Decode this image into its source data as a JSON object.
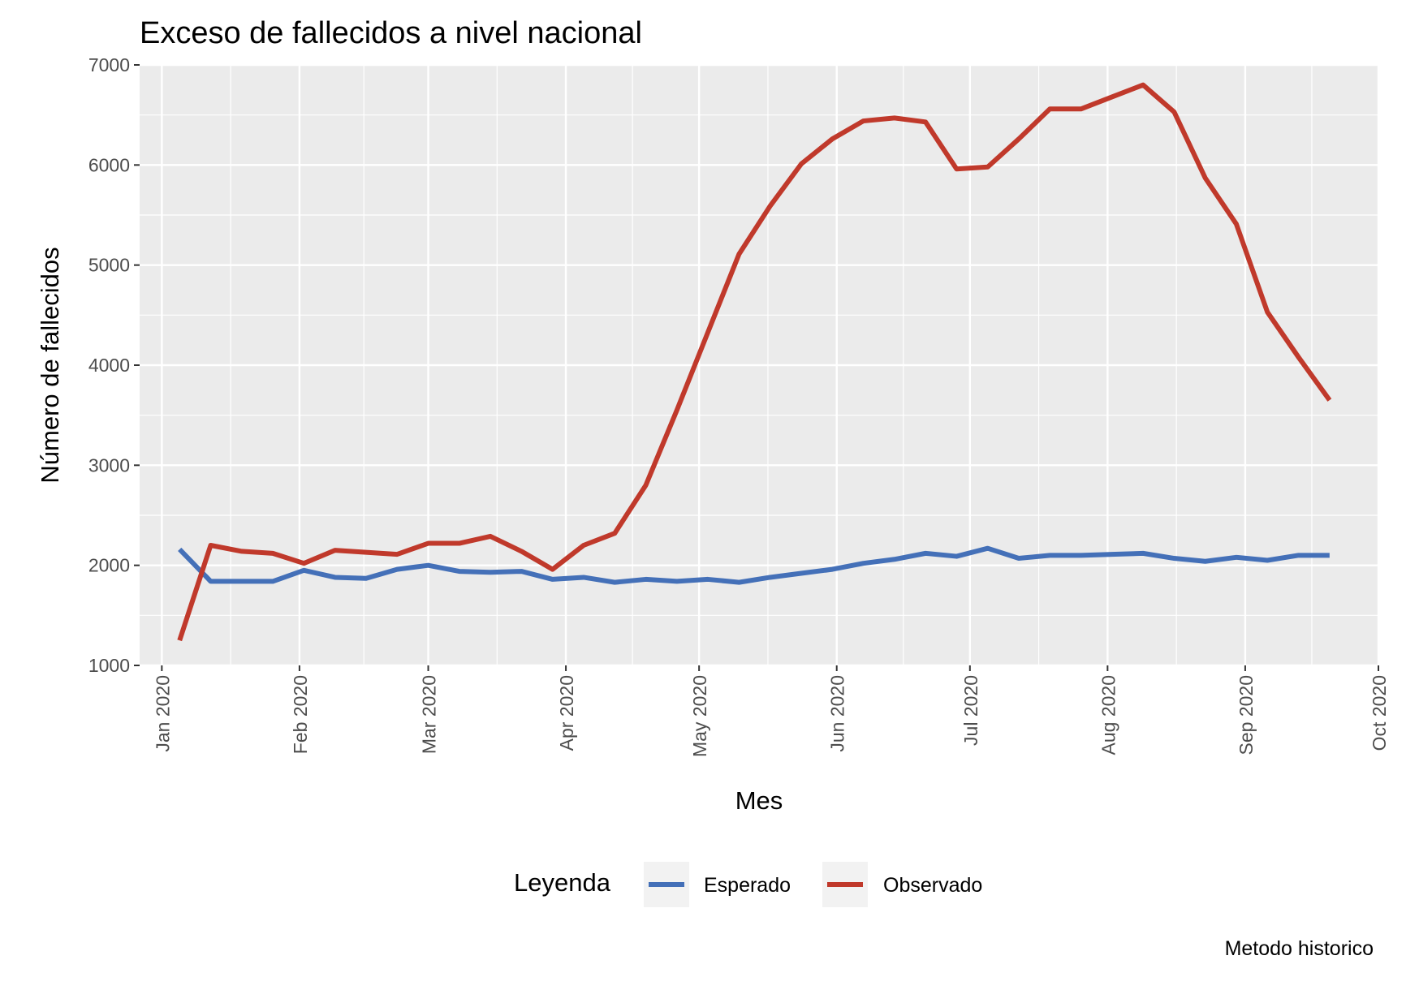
{
  "chart_data": {
    "type": "line",
    "title": "Exceso de fallecidos a nivel nacional",
    "xlabel": "Mes",
    "ylabel": "Número de fallecidos",
    "caption": "Metodo historico",
    "ylim": [
      1000,
      7000
    ],
    "y_ticks": [
      1000,
      2000,
      3000,
      4000,
      5000,
      6000,
      7000
    ],
    "xlim": [
      "2019-12-27",
      "2020-10-01"
    ],
    "x_ticks": [
      {
        "date": "2020-01-01",
        "label": "Jan 2020"
      },
      {
        "date": "2020-02-01",
        "label": "Feb 2020"
      },
      {
        "date": "2020-03-01",
        "label": "Mar 2020"
      },
      {
        "date": "2020-04-01",
        "label": "Apr 2020"
      },
      {
        "date": "2020-05-01",
        "label": "May 2020"
      },
      {
        "date": "2020-06-01",
        "label": "Jun 2020"
      },
      {
        "date": "2020-07-01",
        "label": "Jul 2020"
      },
      {
        "date": "2020-08-01",
        "label": "Aug 2020"
      },
      {
        "date": "2020-09-01",
        "label": "Sep 2020"
      },
      {
        "date": "2020-10-01",
        "label": "Oct 2020"
      }
    ],
    "x": [
      "2020-01-05",
      "2020-01-12",
      "2020-01-19",
      "2020-01-26",
      "2020-02-02",
      "2020-02-09",
      "2020-02-16",
      "2020-02-23",
      "2020-03-01",
      "2020-03-08",
      "2020-03-15",
      "2020-03-22",
      "2020-03-29",
      "2020-04-05",
      "2020-04-12",
      "2020-04-19",
      "2020-04-26",
      "2020-05-03",
      "2020-05-10",
      "2020-05-17",
      "2020-05-24",
      "2020-05-31",
      "2020-06-07",
      "2020-06-14",
      "2020-06-21",
      "2020-06-28",
      "2020-07-05",
      "2020-07-12",
      "2020-07-19",
      "2020-07-26",
      "2020-08-02",
      "2020-08-09",
      "2020-08-16",
      "2020-08-23",
      "2020-08-30",
      "2020-09-06",
      "2020-09-13",
      "2020-09-20"
    ],
    "series": [
      {
        "name": "Esperado",
        "color": "#4470b8",
        "values": [
          2160,
          1840,
          1840,
          1840,
          1950,
          1880,
          1870,
          1960,
          2000,
          1940,
          1930,
          1940,
          1860,
          1880,
          1830,
          1860,
          1840,
          1860,
          1830,
          1880,
          1920,
          1960,
          2020,
          2060,
          2120,
          2090,
          2170,
          2070,
          2100,
          2100,
          2110,
          2120,
          2070,
          2040,
          2080,
          2050,
          2100,
          2100
        ]
      },
      {
        "name": "Observado",
        "color": "#c0392b",
        "values": [
          1250,
          2200,
          2140,
          2120,
          2020,
          2150,
          2130,
          2110,
          2220,
          2220,
          2290,
          2140,
          1960,
          2200,
          2320,
          2800,
          3550,
          4330,
          5110,
          5590,
          6010,
          6260,
          6440,
          6470,
          6430,
          5960,
          5980,
          6260,
          6560,
          6560,
          6680,
          6800,
          6530,
          5870,
          5410,
          4530,
          4080,
          3650
        ]
      }
    ],
    "legend": {
      "title": "Leyenda",
      "position": "bottom"
    },
    "grid": true
  }
}
